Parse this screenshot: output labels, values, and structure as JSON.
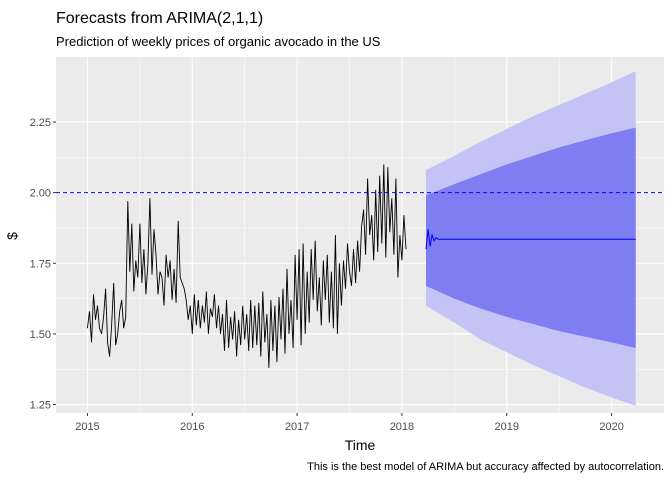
{
  "chart_data": {
    "type": "line",
    "title": "Forecasts from ARIMA(2,1,1)",
    "subtitle": "Prediction of weekly prices of organic avocado in the US",
    "xlabel": "Time",
    "ylabel": "$",
    "caption": "This is the best model of ARIMA but accuracy affected by autocorrelation.",
    "xlim": [
      2014.7,
      2020.5
    ],
    "ylim": [
      1.22,
      2.48
    ],
    "x_ticks": [
      2015,
      2016,
      2017,
      2018,
      2019,
      2020
    ],
    "x_tick_labels": [
      "2015",
      "2016",
      "2017",
      "2018",
      "2019",
      "2020"
    ],
    "y_ticks": [
      1.25,
      1.5,
      1.75,
      2.0,
      2.25
    ],
    "y_tick_labels": [
      "1.25",
      "1.50",
      "1.75",
      "2.00",
      "2.25"
    ],
    "grid": true,
    "reference_line": {
      "y": 2.0,
      "style": "dashed",
      "color": "#0000ff"
    },
    "colors": {
      "panel": "#ebebeb",
      "grid": "#ffffff",
      "history": "#000000",
      "forecast": "#0000ff",
      "pi80": "#7e7ef2",
      "pi95": "#c3c3f5"
    },
    "history": {
      "name": "",
      "x_start": 2015.0,
      "step": 0.01923,
      "values": [
        1.52,
        1.58,
        1.47,
        1.64,
        1.55,
        1.6,
        1.52,
        1.5,
        1.56,
        1.66,
        1.47,
        1.42,
        1.53,
        1.68,
        1.46,
        1.5,
        1.58,
        1.62,
        1.52,
        1.56,
        1.97,
        1.72,
        1.89,
        1.65,
        1.76,
        1.7,
        1.89,
        1.68,
        1.8,
        1.64,
        1.75,
        1.98,
        1.71,
        1.87,
        1.78,
        1.64,
        1.72,
        1.7,
        1.6,
        1.78,
        1.7,
        1.76,
        1.62,
        1.73,
        1.61,
        1.9,
        1.7,
        1.68,
        1.66,
        1.62,
        1.55,
        1.6,
        1.5,
        1.64,
        1.53,
        1.62,
        1.52,
        1.6,
        1.54,
        1.65,
        1.5,
        1.59,
        1.56,
        1.64,
        1.52,
        1.6,
        1.5,
        1.57,
        1.44,
        1.62,
        1.45,
        1.56,
        1.48,
        1.58,
        1.42,
        1.55,
        1.46,
        1.6,
        1.48,
        1.57,
        1.44,
        1.62,
        1.45,
        1.6,
        1.46,
        1.61,
        1.42,
        1.65,
        1.47,
        1.57,
        1.38,
        1.62,
        1.44,
        1.6,
        1.4,
        1.63,
        1.48,
        1.66,
        1.43,
        1.73,
        1.5,
        1.62,
        1.45,
        1.78,
        1.55,
        1.8,
        1.46,
        1.82,
        1.5,
        1.72,
        1.54,
        1.8,
        1.62,
        1.83,
        1.58,
        1.7,
        1.53,
        1.76,
        1.62,
        1.78,
        1.54,
        1.72,
        1.52,
        1.85,
        1.5,
        1.75,
        1.6,
        1.76,
        1.66,
        1.82,
        1.72,
        1.67,
        1.8,
        1.68,
        1.83,
        1.72,
        1.88,
        1.94,
        1.78,
        2.05,
        1.85,
        1.92,
        1.76,
        2.01,
        1.79,
        2.06,
        1.82,
        2.1,
        1.77,
        2.09,
        1.86,
        1.98,
        1.78,
        2.05,
        1.7,
        1.85,
        1.76,
        1.92,
        1.8
      ]
    },
    "forecast": {
      "name": "",
      "x_start": 2018.23,
      "step": 0.01923,
      "values": [
        1.8,
        1.87,
        1.81,
        1.85,
        1.83,
        1.84,
        1.835,
        1.835,
        1.835
      ],
      "x_end": 2020.23,
      "y_end": 1.835
    },
    "intervals": {
      "x": [
        2018.23,
        2018.5,
        2018.75,
        2019.0,
        2019.25,
        2019.5,
        2019.75,
        2020.0,
        2020.23
      ],
      "lo80": [
        1.67,
        1.625,
        1.59,
        1.56,
        1.535,
        1.51,
        1.49,
        1.47,
        1.45
      ],
      "hi80": [
        1.99,
        2.03,
        2.065,
        2.1,
        2.13,
        2.16,
        2.185,
        2.21,
        2.23
      ],
      "lo95": [
        1.6,
        1.54,
        1.48,
        1.435,
        1.39,
        1.35,
        1.31,
        1.275,
        1.245
      ],
      "hi95": [
        2.08,
        2.13,
        2.18,
        2.225,
        2.27,
        2.31,
        2.35,
        2.39,
        2.43
      ]
    }
  }
}
